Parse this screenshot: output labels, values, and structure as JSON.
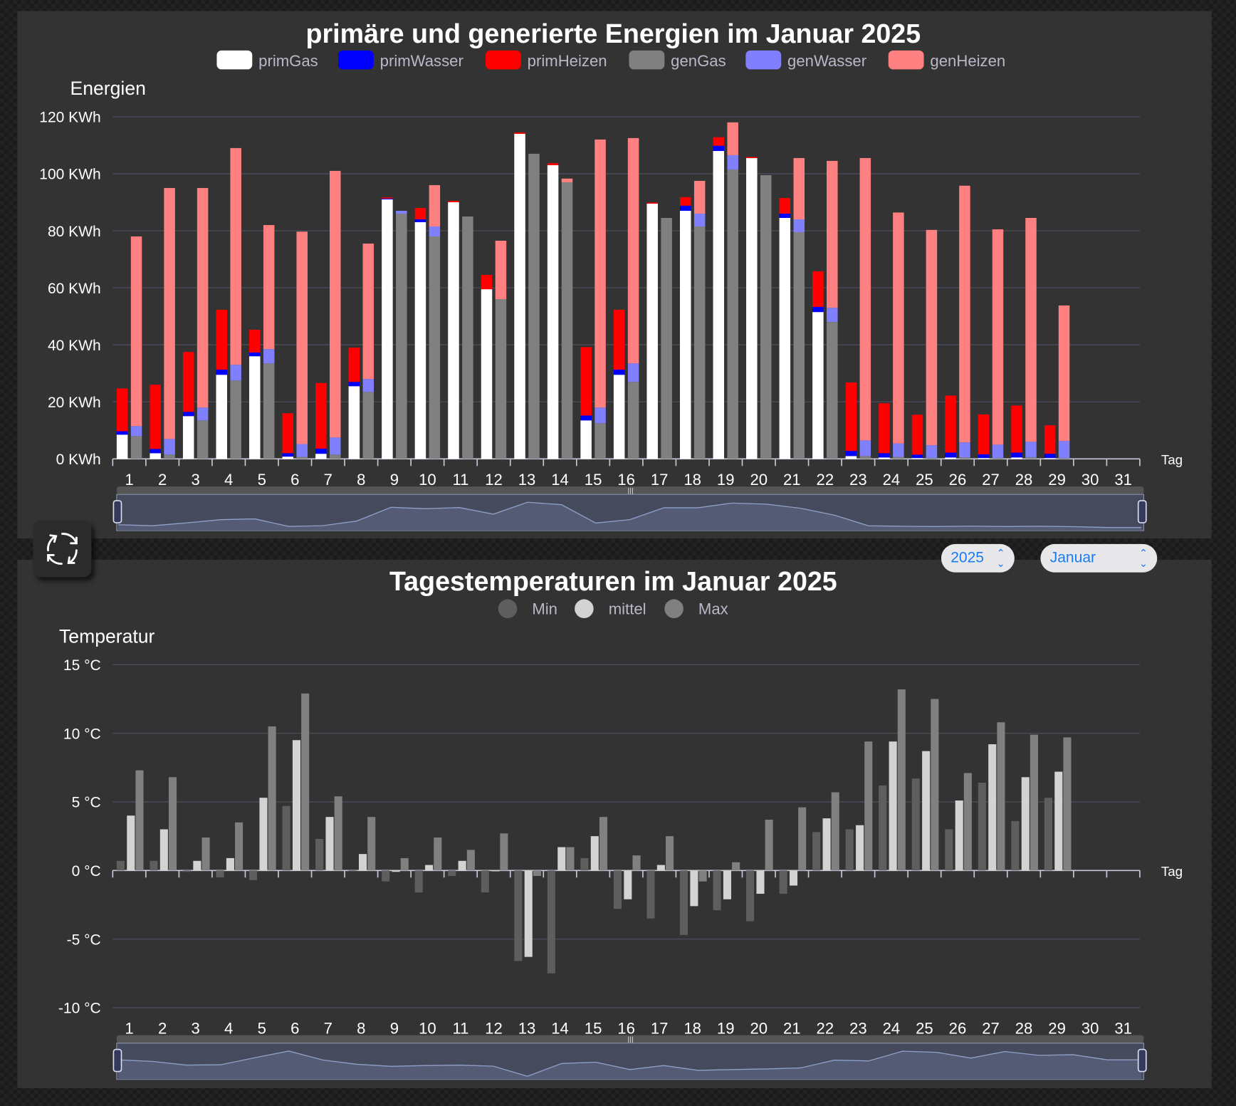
{
  "controls": {
    "year": "2025",
    "month": "Januar"
  },
  "chart_data": [
    {
      "type": "bar",
      "stacked": true,
      "title": "primäre und generierte Energien im Januar 2025",
      "ylabel": "Energien",
      "xlabel": "Tag",
      "ylim": [
        0,
        120
      ],
      "yticks": [
        "0 KWh",
        "20 KWh",
        "40 KWh",
        "60 KWh",
        "80 KWh",
        "100 KWh",
        "120 KWh"
      ],
      "ytick_values": [
        0,
        20,
        40,
        60,
        80,
        100,
        120
      ],
      "grid": true,
      "legend": "top",
      "categories": [
        "1",
        "2",
        "3",
        "4",
        "5",
        "6",
        "7",
        "8",
        "9",
        "10",
        "11",
        "12",
        "13",
        "14",
        "15",
        "16",
        "17",
        "18",
        "19",
        "20",
        "21",
        "22",
        "23",
        "24",
        "25",
        "26",
        "27",
        "28",
        "29",
        "30",
        "31"
      ],
      "stacks": [
        {
          "name": "prim",
          "series": [
            {
              "name": "primGas",
              "color": "#ffffff",
              "values": [
                8.5,
                2,
                15,
                29.5,
                36,
                0.8,
                1.8,
                25.5,
                91,
                83,
                90,
                59.5,
                114,
                103,
                13.5,
                29.5,
                89.5,
                87,
                108,
                105.5,
                84.5,
                51.5,
                1,
                0.5,
                0.3,
                0.5,
                0.3,
                0.5,
                0.3,
                0,
                0
              ]
            },
            {
              "name": "primWasser",
              "color": "#0000ff",
              "values": [
                1.2,
                1.5,
                1.5,
                1.8,
                1.3,
                1.2,
                1.8,
                1.5,
                0.3,
                1,
                0,
                0,
                0,
                0,
                1.7,
                1.8,
                0,
                1.8,
                1.8,
                0,
                1.5,
                1.8,
                1.8,
                1.5,
                1.2,
                1.7,
                1.3,
                1.7,
                1.5,
                0,
                0
              ]
            },
            {
              "name": "primHeizen",
              "color": "#ff0000",
              "values": [
                15,
                22.5,
                21,
                21,
                8,
                14,
                23,
                12,
                0.4,
                4,
                0.5,
                5,
                0.5,
                0.7,
                24,
                21,
                0.4,
                3,
                3,
                0.4,
                5.5,
                12.5,
                24,
                17.5,
                14,
                20,
                14,
                16.5,
                10,
                0,
                0
              ]
            }
          ]
        },
        {
          "name": "gen",
          "series": [
            {
              "name": "genGas",
              "color": "#808080",
              "values": [
                8,
                1.5,
                13.5,
                27.5,
                33.5,
                0.7,
                1.5,
                23.5,
                86,
                78,
                85,
                56,
                107,
                97,
                12.5,
                27,
                84.5,
                81.5,
                101.5,
                99.5,
                79.5,
                48,
                1,
                0.7,
                0.3,
                0.5,
                0.3,
                0.5,
                0.3,
                0,
                0
              ]
            },
            {
              "name": "genWasser",
              "color": "#8080ff",
              "values": [
                3.5,
                5.5,
                4.5,
                5.5,
                5,
                4.5,
                6,
                4.5,
                1,
                3.5,
                0,
                0,
                0,
                0,
                5.5,
                6.5,
                0,
                4.5,
                5,
                0,
                4.5,
                5,
                5.5,
                4.7,
                4.5,
                5.3,
                4.7,
                5.5,
                6,
                0,
                0
              ]
            },
            {
              "name": "genHeizen",
              "color": "#ff8080",
              "values": [
                66.5,
                88,
                77,
                76,
                43.5,
                74.5,
                93.5,
                47.5,
                0,
                14.5,
                0,
                20.5,
                0,
                1.3,
                94,
                79,
                0,
                11.5,
                11.5,
                0,
                21.5,
                51.5,
                99,
                81,
                75.5,
                90,
                75.5,
                78.5,
                47.5,
                0,
                0
              ]
            }
          ]
        }
      ]
    },
    {
      "type": "bar",
      "title": "Tagestemperaturen im Januar 2025",
      "ylabel": "Temperatur",
      "xlabel": "Tag",
      "ylim": [
        -10,
        15
      ],
      "yticks": [
        "-10 °C",
        "-5 °C",
        "0 °C",
        "5 °C",
        "10 °C",
        "15 °C"
      ],
      "ytick_values": [
        -10,
        -5,
        0,
        5,
        10,
        15
      ],
      "grid": true,
      "legend": "top",
      "categories": [
        "1",
        "2",
        "3",
        "4",
        "5",
        "6",
        "7",
        "8",
        "9",
        "10",
        "11",
        "12",
        "13",
        "14",
        "15",
        "16",
        "17",
        "18",
        "19",
        "20",
        "21",
        "22",
        "23",
        "24",
        "25",
        "26",
        "27",
        "28",
        "29",
        "30",
        "31"
      ],
      "series": [
        {
          "name": "Min",
          "color": "#5e5e5e",
          "values": [
            0.7,
            0.7,
            -0.1,
            -0.5,
            -0.7,
            4.7,
            2.3,
            0,
            -0.8,
            -1.6,
            -0.4,
            -1.6,
            -6.6,
            -7.5,
            0.9,
            -2.8,
            -3.5,
            -4.7,
            -2.9,
            -3.7,
            -1.7,
            2.8,
            3.0,
            6.2,
            6.7,
            3.0,
            6.4,
            3.6,
            5.3,
            null,
            null
          ]
        },
        {
          "name": "mittel",
          "color": "#d3d3d3",
          "values": [
            4.0,
            3.0,
            0.7,
            0.9,
            5.3,
            9.5,
            3.9,
            1.2,
            -0.1,
            0.4,
            0.7,
            0,
            -6.3,
            1.7,
            2.5,
            -2.1,
            0.4,
            -2.6,
            -2.1,
            -1.7,
            -1.1,
            3.8,
            3.3,
            9.4,
            8.7,
            5.1,
            9.2,
            6.8,
            7.2,
            null,
            null
          ]
        },
        {
          "name": "Max",
          "color": "#808080",
          "values": [
            7.3,
            6.8,
            2.4,
            3.5,
            10.5,
            12.9,
            5.4,
            3.9,
            0.9,
            2.4,
            1.5,
            2.7,
            -0.4,
            1.7,
            3.9,
            1.1,
            2.5,
            -0.8,
            0.6,
            3.7,
            4.6,
            5.7,
            9.4,
            13.2,
            12.5,
            7.1,
            10.8,
            9.9,
            9.7,
            null,
            null
          ]
        }
      ]
    }
  ]
}
